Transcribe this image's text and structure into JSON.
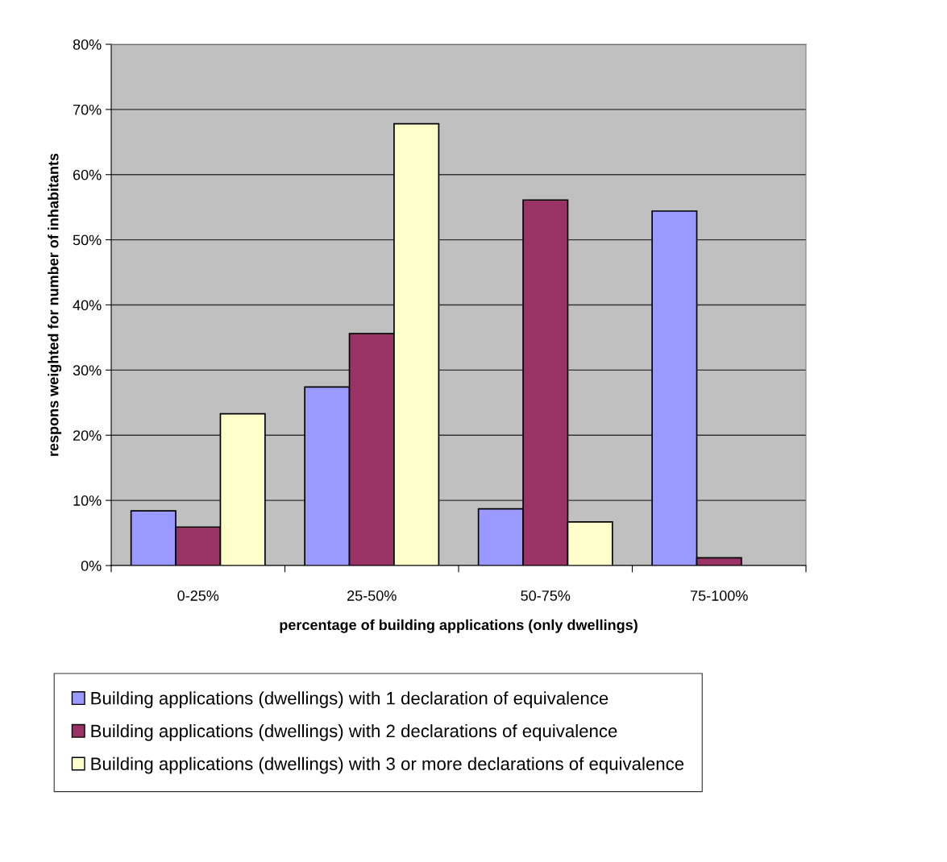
{
  "chart_data": {
    "type": "bar",
    "categories": [
      "0-25%",
      "25-50%",
      "50-75%",
      "75-100%"
    ],
    "xlabel": "percentage of building applications (only dwellings)",
    "ylabel": "respons weighted for number of inhabitants",
    "series": [
      {
        "name": "Building applications (dwellings) with 1 declaration of equivalence",
        "color": "#9999ff",
        "values": [
          8.4,
          27.4,
          8.7,
          54.4
        ]
      },
      {
        "name": "Building applications (dwellings) with 2 declarations of equivalence",
        "color": "#993366",
        "values": [
          5.9,
          35.6,
          56.1,
          1.2
        ]
      },
      {
        "name": "Building applications (dwellings) with 3 or more declarations of equivalence",
        "color": "#ffffcc",
        "values": [
          23.3,
          67.8,
          6.7,
          null
        ]
      }
    ],
    "ylim": [
      0,
      80
    ],
    "yticks": [
      {
        "value": 0,
        "label": "0%"
      },
      {
        "value": 10,
        "label": "10%"
      },
      {
        "value": 20,
        "label": "20%"
      },
      {
        "value": 30,
        "label": "30%"
      },
      {
        "value": 40,
        "label": "40%"
      },
      {
        "value": 50,
        "label": "50%"
      },
      {
        "value": 60,
        "label": "60%"
      },
      {
        "value": 70,
        "label": "70%"
      },
      {
        "value": 80,
        "label": "80%"
      }
    ],
    "grid": "y",
    "legend": "bottom"
  }
}
